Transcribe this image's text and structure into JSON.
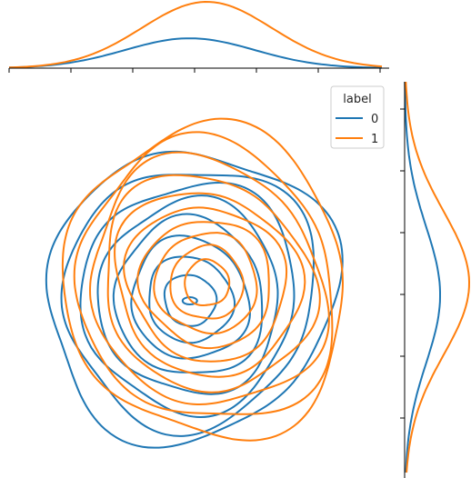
{
  "chart_data": {
    "type": "jointplot-kde",
    "title": "",
    "xlabel": "",
    "ylabel": "",
    "xlim": [
      -3.3,
      3.3
    ],
    "ylim": [
      -3.3,
      3.3
    ],
    "grid": false,
    "legend": {
      "title": "label",
      "placement": "top-right"
    },
    "series": [
      {
        "name": "0",
        "color": "#1f77b4",
        "center": [
          -0.1,
          -0.3
        ],
        "spread": [
          1.0,
          1.0
        ],
        "levels": 8,
        "peak": [
          -0.1,
          -0.4
        ],
        "marginal_x_peak": 0.45,
        "marginal_y_peak": 0.55
      },
      {
        "name": "1",
        "color": "#ff7f0e",
        "center": [
          0.2,
          -0.1
        ],
        "spread": [
          1.0,
          1.05
        ],
        "levels": 10,
        "marginal_x_peak": 1.0,
        "marginal_y_peak": 1.0
      }
    ]
  },
  "legend": {
    "title": "label",
    "items": [
      {
        "label": "0",
        "color": "#1f77b4"
      },
      {
        "label": "1",
        "color": "#ff7f0e"
      }
    ]
  }
}
